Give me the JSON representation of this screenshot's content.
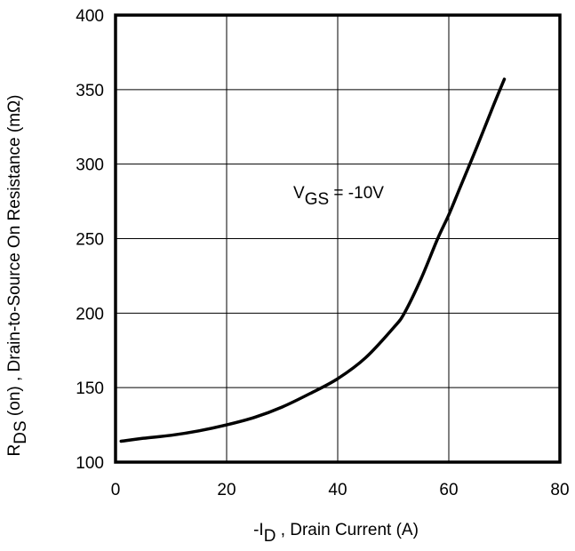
{
  "chart_data": {
    "type": "line",
    "xlabel_prefix": "-I",
    "xlabel_sub": "D",
    "xlabel_suffix": " , Drain Current (A)",
    "ylabel_main": "R",
    "ylabel_sub": "DS",
    "ylabel_suffix": " (on) , Drain-to-Source On Resistance (mΩ)",
    "xlim": [
      0,
      80
    ],
    "ylim": [
      100,
      400
    ],
    "xticks": [
      0,
      20,
      40,
      60,
      80
    ],
    "yticks": [
      100,
      150,
      200,
      250,
      300,
      350,
      400
    ],
    "grid": true,
    "annotation": {
      "main": "V",
      "sub": "GS",
      "suffix": " = -10V"
    },
    "series": [
      {
        "x": [
          1,
          5,
          10,
          15,
          20,
          25,
          30,
          35,
          40,
          45,
          50,
          52,
          55,
          58,
          60,
          62,
          65,
          68,
          70
        ],
        "y": [
          114,
          116,
          118,
          121,
          125,
          130,
          137,
          146,
          156,
          170,
          190,
          200,
          223,
          250,
          266,
          284,
          311,
          339,
          357
        ]
      }
    ]
  }
}
